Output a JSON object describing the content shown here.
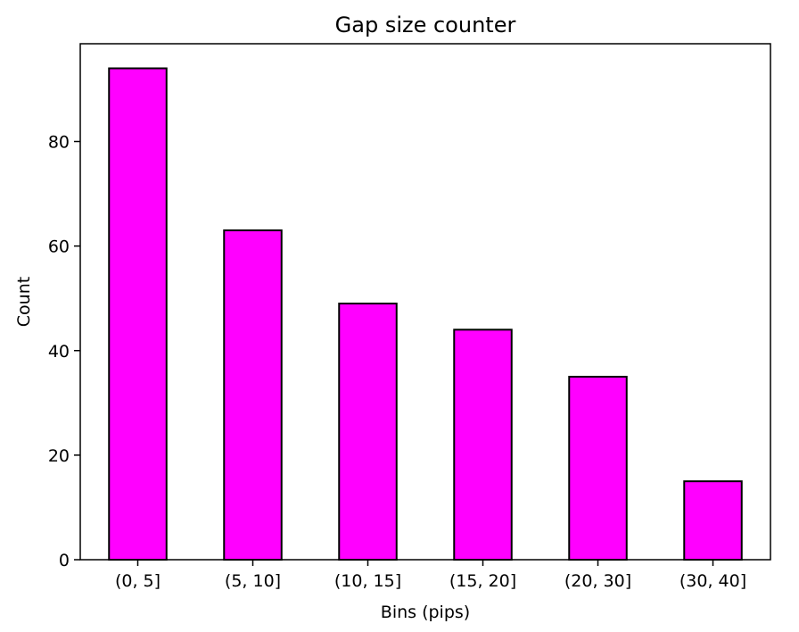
{
  "chart_data": {
    "type": "bar",
    "title": "Gap size counter",
    "xlabel": "Bins (pips)",
    "ylabel": "Count",
    "categories": [
      "(0, 5]",
      "(5, 10]",
      "(10, 15]",
      "(15, 20]",
      "(20, 30]",
      "(30, 40]"
    ],
    "values": [
      94,
      63,
      49,
      44,
      35,
      15
    ],
    "ylim": [
      0,
      98.7
    ],
    "yticks": [
      0,
      20,
      40,
      60,
      80
    ],
    "grid": false,
    "legend": "none",
    "colors": {
      "bar_fill": "#ff00ff",
      "bar_edge": "#000000"
    }
  }
}
